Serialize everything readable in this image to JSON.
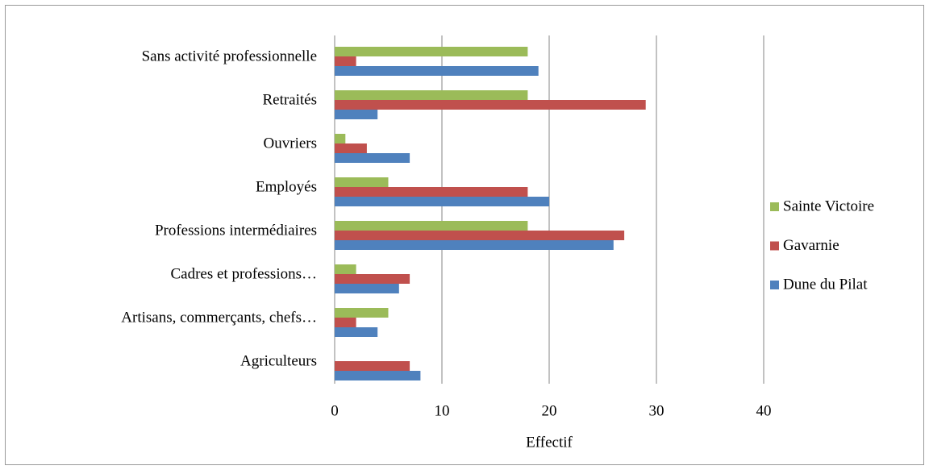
{
  "chart_data": {
    "type": "hbar",
    "categories": [
      "Agriculteurs",
      "Artisans, commerçants, chefs…",
      "Cadres et professions…",
      "Professions intermédiaires",
      "Employés",
      "Ouvriers",
      "Retraités",
      "Sans activité professionnelle"
    ],
    "series": [
      {
        "name": "Dune du Pilat",
        "color": "#4f81bd",
        "values": [
          8,
          4,
          6,
          26,
          20,
          7,
          4,
          19
        ]
      },
      {
        "name": "Gavarnie",
        "color": "#c0504d",
        "values": [
          7,
          2,
          7,
          27,
          18,
          3,
          29,
          2
        ]
      },
      {
        "name": "Sainte Victoire",
        "color": "#9bbb59",
        "values": [
          0,
          5,
          2,
          18,
          5,
          1,
          18,
          18
        ]
      }
    ],
    "xlabel": "Effectif",
    "xlim": [
      0,
      40
    ],
    "xticks": [
      0,
      10,
      20,
      30,
      40
    ],
    "grid": true,
    "legend": "right"
  }
}
